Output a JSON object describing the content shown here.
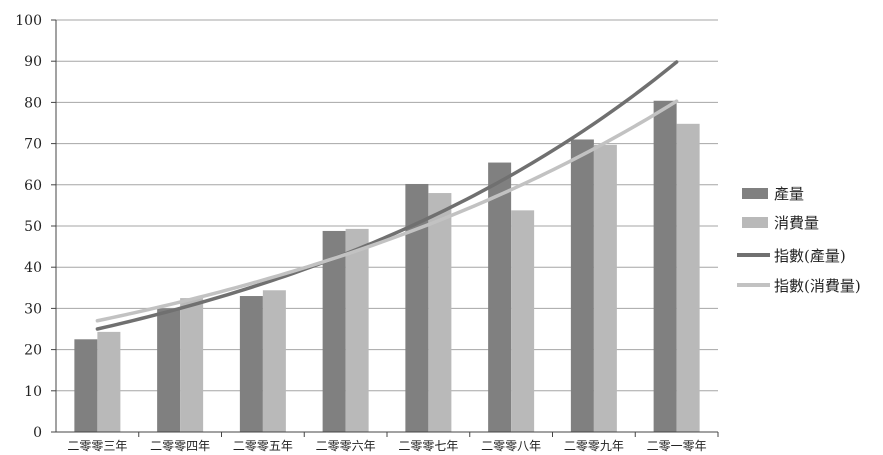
{
  "chart_data": {
    "type": "bar",
    "categories": [
      "二零零三年",
      "二零零四年",
      "二零零五年",
      "二零零六年",
      "二零零七年",
      "二零零八年",
      "二零零九年",
      "二零一零年"
    ],
    "series": [
      {
        "name": "產量",
        "type": "bar",
        "color": "#808080",
        "values": [
          22.5,
          30.0,
          33.0,
          48.8,
          60.2,
          65.4,
          71.0,
          80.4
        ]
      },
      {
        "name": "消費量",
        "type": "bar",
        "color": "#b9b9b9",
        "values": [
          24.3,
          32.5,
          34.4,
          49.3,
          58.0,
          53.8,
          69.7,
          74.8
        ]
      }
    ],
    "trendlines": [
      {
        "name": "指數(產量)",
        "type": "exponential",
        "color": "#707070",
        "start": 25.0,
        "end": 89.8
      },
      {
        "name": "指數(消費量)",
        "type": "exponential",
        "color": "#c2c2c2",
        "start": 27.0,
        "end": 80.3
      }
    ],
    "ylim": [
      0,
      100
    ],
    "yticks": [
      0,
      10,
      20,
      30,
      40,
      50,
      60,
      70,
      80,
      90,
      100
    ],
    "grid": true,
    "legend_position": "right",
    "title": "",
    "xlabel": "",
    "ylabel": ""
  }
}
